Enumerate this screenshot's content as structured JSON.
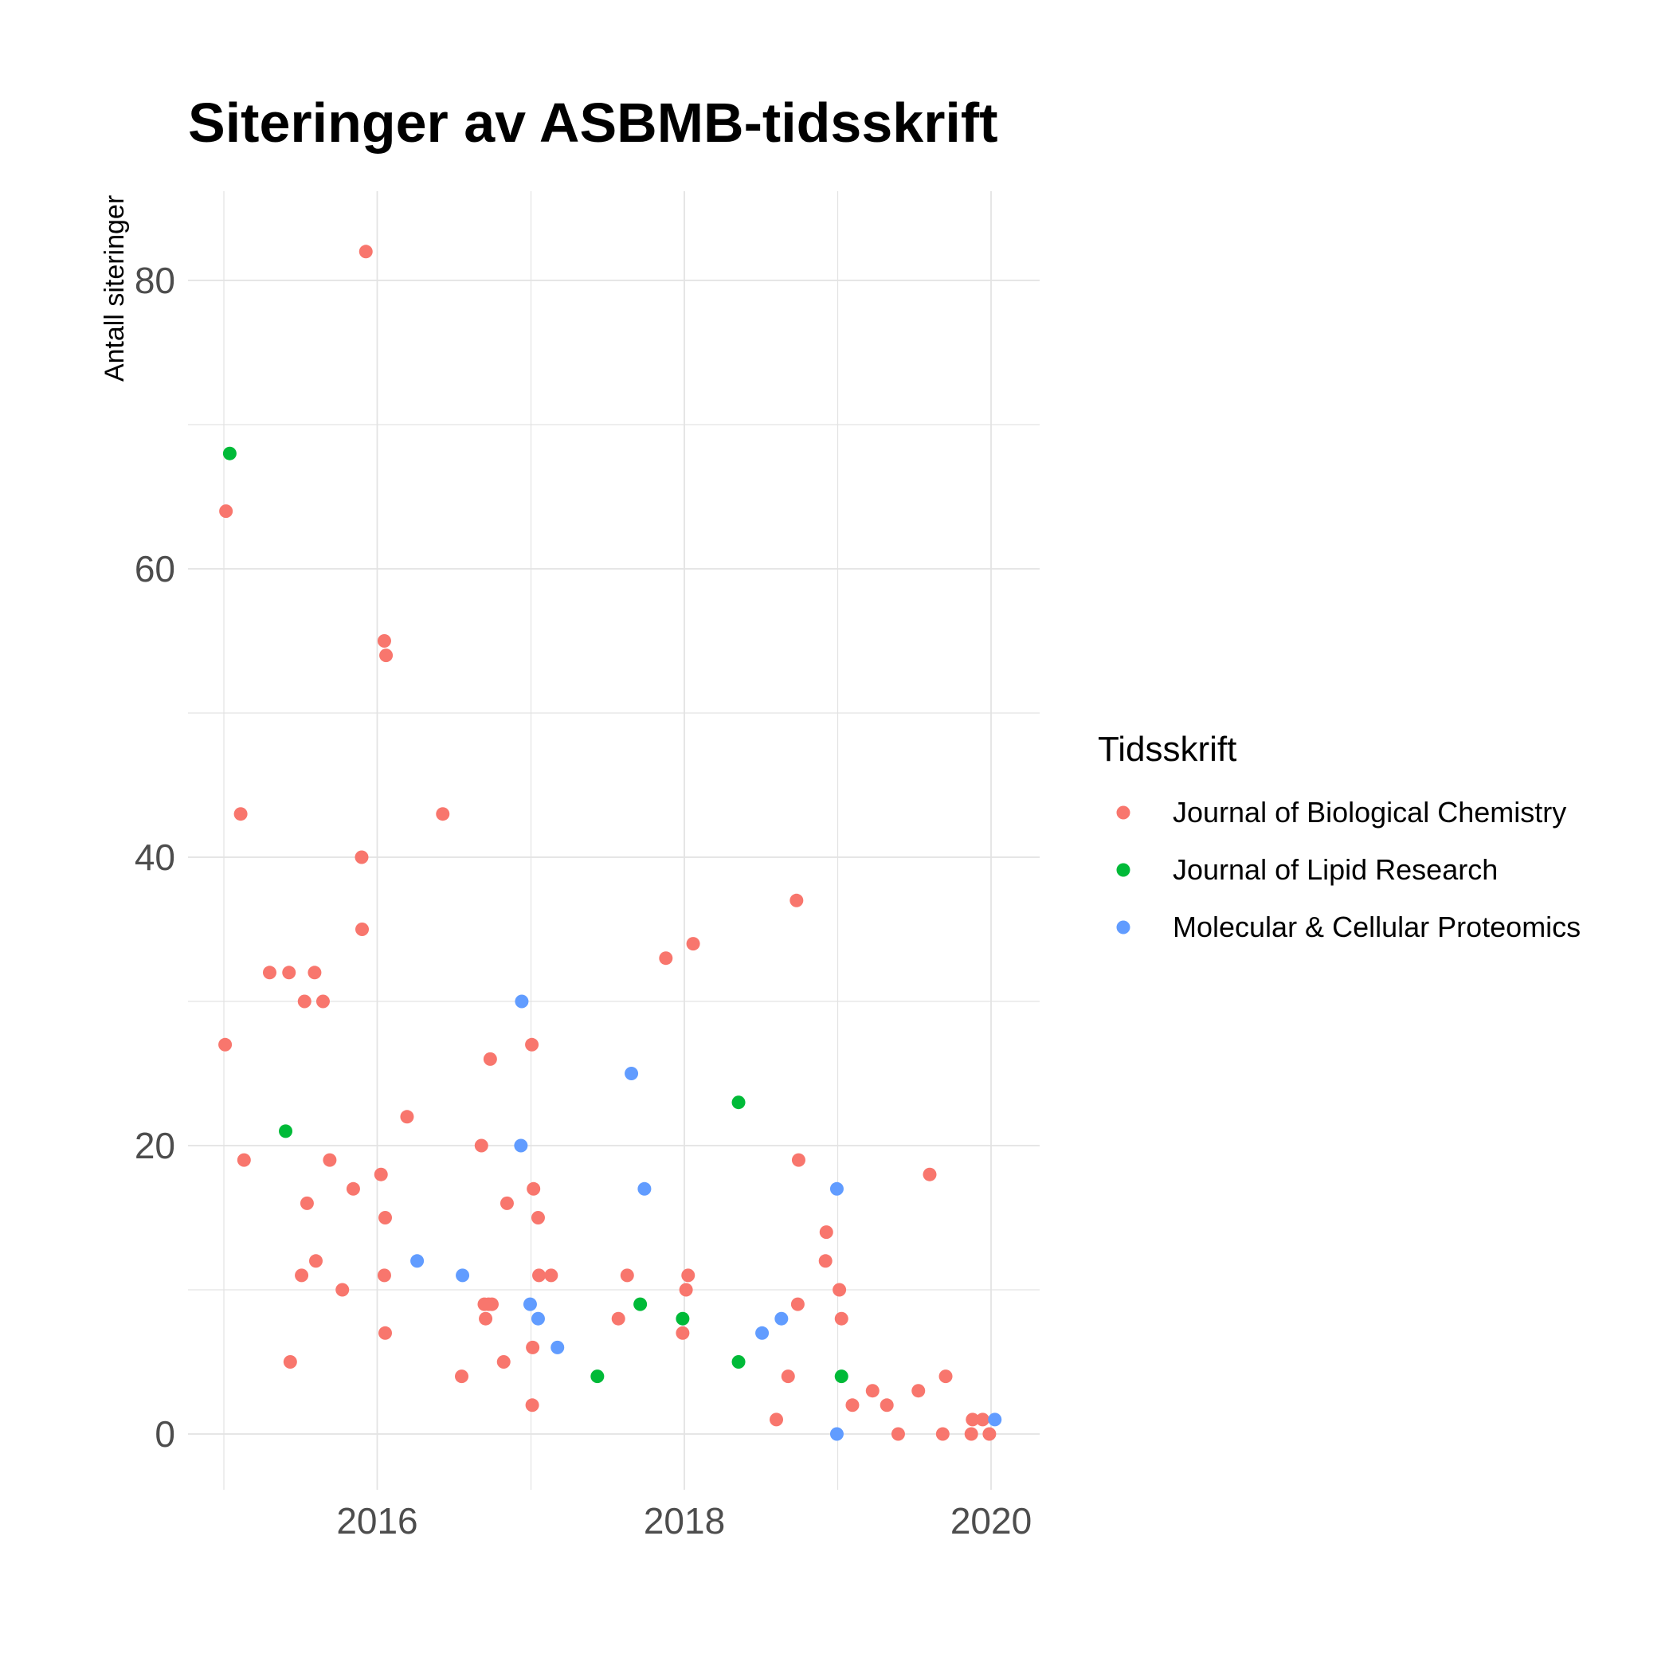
{
  "chart_data": {
    "type": "scatter",
    "title": "Siteringer av ASBMB-tidsskrift",
    "xlabel": "",
    "ylabel": "Antall siteringer",
    "x_ticks": [
      "2016",
      "2018",
      "2020"
    ],
    "y_ticks": [
      "0",
      "20",
      "40",
      "60",
      "80"
    ],
    "xlim": [
      "2014-10-01",
      "2020-05-01"
    ],
    "ylim": [
      -4,
      86
    ],
    "grid": true,
    "legend": {
      "title": "Tidsskrift",
      "position": "right"
    },
    "series": [
      {
        "name": "Journal of Biological Chemistry",
        "color": "#F8766D",
        "points": [
          {
            "x": "2015-01-06",
            "y": 64
          },
          {
            "x": "2015-01-04",
            "y": 27
          },
          {
            "x": "2015-02-10",
            "y": 43
          },
          {
            "x": "2015-02-18",
            "y": 19
          },
          {
            "x": "2015-04-20",
            "y": 32
          },
          {
            "x": "2015-06-05",
            "y": 32
          },
          {
            "x": "2015-06-08",
            "y": 5
          },
          {
            "x": "2015-07-05",
            "y": 11
          },
          {
            "x": "2015-07-12",
            "y": 30
          },
          {
            "x": "2015-07-18",
            "y": 16
          },
          {
            "x": "2015-08-05",
            "y": 32
          },
          {
            "x": "2015-08-08",
            "y": 12
          },
          {
            "x": "2015-08-25",
            "y": 30
          },
          {
            "x": "2015-09-10",
            "y": 19
          },
          {
            "x": "2015-10-10",
            "y": 10
          },
          {
            "x": "2015-11-05",
            "y": 17
          },
          {
            "x": "2015-11-25",
            "y": 40
          },
          {
            "x": "2015-11-26",
            "y": 35
          },
          {
            "x": "2015-12-05",
            "y": 82
          },
          {
            "x": "2016-01-10",
            "y": 18
          },
          {
            "x": "2016-01-18",
            "y": 55
          },
          {
            "x": "2016-01-22",
            "y": 54
          },
          {
            "x": "2016-01-20",
            "y": 15
          },
          {
            "x": "2016-01-18",
            "y": 11
          },
          {
            "x": "2016-01-20",
            "y": 7
          },
          {
            "x": "2016-03-12",
            "y": 22
          },
          {
            "x": "2016-06-05",
            "y": 43
          },
          {
            "x": "2016-07-20",
            "y": 4
          },
          {
            "x": "2016-09-05",
            "y": 20
          },
          {
            "x": "2016-09-12",
            "y": 9
          },
          {
            "x": "2016-09-15",
            "y": 8
          },
          {
            "x": "2016-09-26",
            "y": 26
          },
          {
            "x": "2016-09-22",
            "y": 9
          },
          {
            "x": "2016-09-30",
            "y": 9
          },
          {
            "x": "2016-10-28",
            "y": 5
          },
          {
            "x": "2016-11-05",
            "y": 16
          },
          {
            "x": "2017-01-03",
            "y": 27
          },
          {
            "x": "2017-01-07",
            "y": 17
          },
          {
            "x": "2017-01-05",
            "y": 6
          },
          {
            "x": "2017-01-04",
            "y": 2
          },
          {
            "x": "2017-01-18",
            "y": 15
          },
          {
            "x": "2017-01-20",
            "y": 11
          },
          {
            "x": "2017-02-18",
            "y": 11
          },
          {
            "x": "2017-07-28",
            "y": 8
          },
          {
            "x": "2017-08-18",
            "y": 11
          },
          {
            "x": "2017-11-18",
            "y": 33
          },
          {
            "x": "2017-12-28",
            "y": 7
          },
          {
            "x": "2018-01-05",
            "y": 10
          },
          {
            "x": "2018-01-10",
            "y": 11
          },
          {
            "x": "2018-01-22",
            "y": 34
          },
          {
            "x": "2018-08-08",
            "y": 1
          },
          {
            "x": "2018-09-05",
            "y": 4
          },
          {
            "x": "2018-09-25",
            "y": 37
          },
          {
            "x": "2018-09-28",
            "y": 9
          },
          {
            "x": "2018-09-30",
            "y": 19
          },
          {
            "x": "2018-12-05",
            "y": 14
          },
          {
            "x": "2018-12-03",
            "y": 12
          },
          {
            "x": "2019-01-05",
            "y": 10
          },
          {
            "x": "2019-01-10",
            "y": 8
          },
          {
            "x": "2019-02-05",
            "y": 2
          },
          {
            "x": "2019-03-25",
            "y": 3
          },
          {
            "x": "2019-04-28",
            "y": 2
          },
          {
            "x": "2019-05-25",
            "y": 0
          },
          {
            "x": "2019-07-12",
            "y": 3
          },
          {
            "x": "2019-08-08",
            "y": 18
          },
          {
            "x": "2019-09-08",
            "y": 0
          },
          {
            "x": "2019-09-15",
            "y": 4
          },
          {
            "x": "2019-11-15",
            "y": 0
          },
          {
            "x": "2019-11-18",
            "y": 1
          },
          {
            "x": "2019-12-12",
            "y": 1
          },
          {
            "x": "2019-12-28",
            "y": 0
          }
        ]
      },
      {
        "name": "Journal of Lipid Research",
        "color": "#00BA38",
        "points": [
          {
            "x": "2015-01-15",
            "y": 68
          },
          {
            "x": "2015-05-28",
            "y": 21
          },
          {
            "x": "2017-06-08",
            "y": 4
          },
          {
            "x": "2017-09-18",
            "y": 9
          },
          {
            "x": "2017-12-28",
            "y": 8
          },
          {
            "x": "2018-05-10",
            "y": 23
          },
          {
            "x": "2018-05-10",
            "y": 5
          },
          {
            "x": "2019-01-10",
            "y": 4
          }
        ]
      },
      {
        "name": "Molecular & Cellular Proteomics",
        "color": "#619CFF",
        "points": [
          {
            "x": "2016-04-05",
            "y": 12
          },
          {
            "x": "2016-07-22",
            "y": 11
          },
          {
            "x": "2016-12-08",
            "y": 20
          },
          {
            "x": "2016-12-10",
            "y": 30
          },
          {
            "x": "2016-12-30",
            "y": 9
          },
          {
            "x": "2017-01-18",
            "y": 8
          },
          {
            "x": "2017-03-05",
            "y": 6
          },
          {
            "x": "2017-08-28",
            "y": 25
          },
          {
            "x": "2017-09-28",
            "y": 17
          },
          {
            "x": "2018-07-05",
            "y": 7
          },
          {
            "x": "2018-08-20",
            "y": 8
          },
          {
            "x": "2018-12-30",
            "y": 17
          },
          {
            "x": "2018-12-30",
            "y": 0
          },
          {
            "x": "2020-01-10",
            "y": 1
          }
        ]
      }
    ]
  }
}
